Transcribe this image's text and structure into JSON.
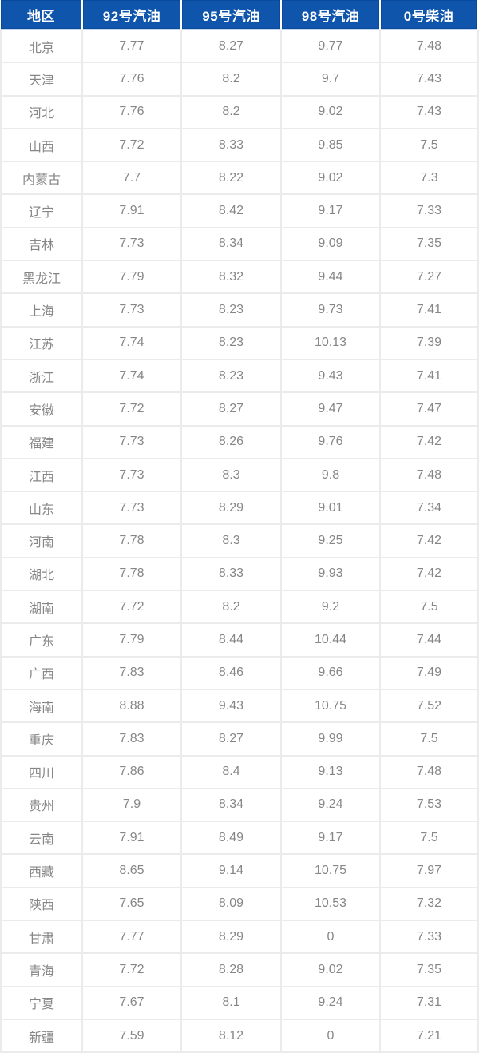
{
  "colors": {
    "header_bg": "#0e55ab",
    "header_border": "#0a4a9c",
    "header_text": "#ffffff",
    "header_underline": "#c6d6ec",
    "body_text": "#868686",
    "grid": "#ebebeb",
    "row_bg": "#ffffff"
  },
  "chart_data": {
    "type": "table",
    "columns": [
      "地区",
      "92号汽油",
      "95号汽油",
      "98号汽油",
      "0号柴油"
    ],
    "rows": [
      {
        "region": "北京",
        "prices": [
          7.77,
          8.27,
          9.77,
          7.48
        ]
      },
      {
        "region": "天津",
        "prices": [
          7.76,
          8.2,
          9.7,
          7.43
        ]
      },
      {
        "region": "河北",
        "prices": [
          7.76,
          8.2,
          9.02,
          7.43
        ]
      },
      {
        "region": "山西",
        "prices": [
          7.72,
          8.33,
          9.85,
          7.5
        ]
      },
      {
        "region": "内蒙古",
        "prices": [
          7.7,
          8.22,
          9.02,
          7.3
        ]
      },
      {
        "region": "辽宁",
        "prices": [
          7.91,
          8.42,
          9.17,
          7.33
        ]
      },
      {
        "region": "吉林",
        "prices": [
          7.73,
          8.34,
          9.09,
          7.35
        ]
      },
      {
        "region": "黑龙江",
        "prices": [
          7.79,
          8.32,
          9.44,
          7.27
        ]
      },
      {
        "region": "上海",
        "prices": [
          7.73,
          8.23,
          9.73,
          7.41
        ]
      },
      {
        "region": "江苏",
        "prices": [
          7.74,
          8.23,
          10.13,
          7.39
        ]
      },
      {
        "region": "浙江",
        "prices": [
          7.74,
          8.23,
          9.43,
          7.41
        ]
      },
      {
        "region": "安徽",
        "prices": [
          7.72,
          8.27,
          9.47,
          7.47
        ]
      },
      {
        "region": "福建",
        "prices": [
          7.73,
          8.26,
          9.76,
          7.42
        ]
      },
      {
        "region": "江西",
        "prices": [
          7.73,
          8.3,
          9.8,
          7.48
        ]
      },
      {
        "region": "山东",
        "prices": [
          7.73,
          8.29,
          9.01,
          7.34
        ]
      },
      {
        "region": "河南",
        "prices": [
          7.78,
          8.3,
          9.25,
          7.42
        ]
      },
      {
        "region": "湖北",
        "prices": [
          7.78,
          8.33,
          9.93,
          7.42
        ]
      },
      {
        "region": "湖南",
        "prices": [
          7.72,
          8.2,
          9.2,
          7.5
        ]
      },
      {
        "region": "广东",
        "prices": [
          7.79,
          8.44,
          10.44,
          7.44
        ]
      },
      {
        "region": "广西",
        "prices": [
          7.83,
          8.46,
          9.66,
          7.49
        ]
      },
      {
        "region": "海南",
        "prices": [
          8.88,
          9.43,
          10.75,
          7.52
        ]
      },
      {
        "region": "重庆",
        "prices": [
          7.83,
          8.27,
          9.99,
          7.5
        ]
      },
      {
        "region": "四川",
        "prices": [
          7.86,
          8.4,
          9.13,
          7.48
        ]
      },
      {
        "region": "贵州",
        "prices": [
          7.9,
          8.34,
          9.24,
          7.53
        ]
      },
      {
        "region": "云南",
        "prices": [
          7.91,
          8.49,
          9.17,
          7.5
        ]
      },
      {
        "region": "西藏",
        "prices": [
          8.65,
          9.14,
          10.75,
          7.97
        ]
      },
      {
        "region": "陕西",
        "prices": [
          7.65,
          8.09,
          10.53,
          7.32
        ]
      },
      {
        "region": "甘肃",
        "prices": [
          7.77,
          8.29,
          0,
          7.33
        ]
      },
      {
        "region": "青海",
        "prices": [
          7.72,
          8.28,
          9.02,
          7.35
        ]
      },
      {
        "region": "宁夏",
        "prices": [
          7.67,
          8.1,
          9.24,
          7.31
        ]
      },
      {
        "region": "新疆",
        "prices": [
          7.59,
          8.12,
          0,
          7.21
        ]
      }
    ]
  }
}
